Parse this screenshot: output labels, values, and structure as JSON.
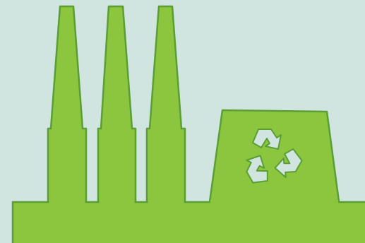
{
  "scene": {
    "subject": "recycling-factory",
    "colors": {
      "background": "#d0e5e0",
      "fill": "#8cc63f",
      "outline": "#5a9e35",
      "recycle_symbol": "#d0e5e0"
    },
    "icons": [
      "chimney-icon",
      "chimney-icon",
      "chimney-icon",
      "recycle-icon"
    ]
  }
}
